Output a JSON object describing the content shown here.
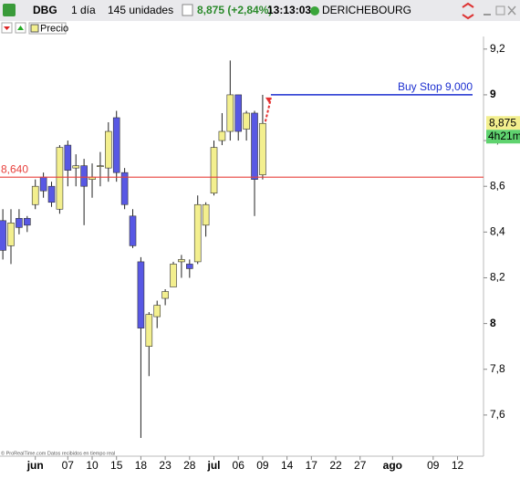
{
  "toolbar": {
    "symbol": "DBG",
    "period": "1 día",
    "units": "145 unidades",
    "last": "8,875 (+2,84%)",
    "time": "13:13:03",
    "name": "DERICHEBOURG"
  },
  "legend_label": "Precio",
  "footer": "© ProRealTime.com  Datos recibidos en tiempo real",
  "chart_data": {
    "type": "candlestick",
    "up_color": "#f3ef8e",
    "down_color": "#5858e4",
    "open": [
      8.45,
      8.34,
      8.46,
      8.46,
      8.52,
      8.64,
      8.6,
      8.5,
      8.78,
      8.68,
      8.69,
      8.63,
      8.69,
      8.68,
      8.9,
      8.66,
      8.47,
      8.27,
      7.9,
      8.03,
      8.11,
      8.16,
      8.27,
      8.26,
      8.27,
      8.43,
      8.57,
      8.8,
      8.84,
      9.0,
      8.85,
      8.92,
      8.65
    ],
    "high": [
      8.5,
      8.5,
      8.5,
      8.47,
      8.63,
      8.66,
      8.62,
      8.78,
      8.8,
      8.74,
      8.72,
      8.7,
      8.75,
      8.88,
      8.93,
      8.68,
      8.5,
      8.29,
      8.05,
      8.1,
      8.15,
      8.27,
      8.3,
      8.28,
      8.56,
      8.53,
      8.8,
      8.92,
      9.15,
      9.0,
      8.93,
      8.93,
      9.0
    ],
    "low": [
      8.28,
      8.26,
      8.39,
      8.4,
      8.5,
      8.55,
      8.51,
      8.48,
      8.6,
      8.6,
      8.43,
      8.55,
      8.6,
      8.62,
      8.62,
      8.5,
      8.33,
      7.5,
      7.77,
      7.98,
      8.08,
      8.16,
      8.2,
      8.2,
      8.26,
      8.38,
      8.56,
      8.78,
      8.8,
      8.8,
      8.8,
      8.47,
      8.63
    ],
    "close": [
      8.32,
      8.44,
      8.42,
      8.43,
      8.6,
      8.58,
      8.53,
      8.77,
      8.67,
      8.69,
      8.6,
      8.64,
      8.69,
      8.84,
      8.66,
      8.52,
      8.34,
      7.98,
      8.04,
      8.08,
      8.14,
      8.26,
      8.28,
      8.24,
      8.52,
      8.52,
      8.77,
      8.84,
      9.0,
      8.84,
      8.92,
      8.63,
      8.875
    ],
    "xlim": [
      -0.35,
      59.2
    ],
    "xticks": [
      {
        "value": 4,
        "label": "jun"
      },
      {
        "value": 8,
        "label": "07"
      },
      {
        "value": 11,
        "label": "10"
      },
      {
        "value": 14,
        "label": "15"
      },
      {
        "value": 17,
        "label": "18"
      },
      {
        "value": 20,
        "label": "23"
      },
      {
        "value": 23,
        "label": "28"
      },
      {
        "value": 26,
        "label": "jul"
      },
      {
        "value": 29,
        "label": "06"
      },
      {
        "value": 32,
        "label": "09"
      },
      {
        "value": 35,
        "label": "14"
      },
      {
        "value": 38,
        "label": "17"
      },
      {
        "value": 41,
        "label": "22"
      },
      {
        "value": 44,
        "label": "27"
      },
      {
        "value": 48,
        "label": "ago"
      },
      {
        "value": 53,
        "label": "09"
      },
      {
        "value": 56,
        "label": "12"
      }
    ],
    "ylim": [
      7.42,
      9.255
    ],
    "yticks": [
      {
        "value": 9.2,
        "label": "9,2"
      },
      9,
      {
        "value": 8.8,
        "label": "8,8"
      },
      {
        "value": 8.6,
        "label": "8,6"
      },
      {
        "value": 8.4,
        "label": "8,4"
      },
      {
        "value": 8.2,
        "label": "8,2"
      },
      8,
      {
        "value": 7.8,
        "label": "7,8"
      },
      {
        "value": 7.6,
        "label": "7,6"
      }
    ],
    "hlines": [
      {
        "value": 8.64,
        "label": "8,640",
        "color": "#e8403c"
      },
      {
        "value": 9.0,
        "label": "Buy Stop 9,000",
        "color": "#1c2fd0"
      }
    ],
    "last_price": {
      "value": 8.875,
      "label": "8,875"
    },
    "countdown": "4h21m"
  }
}
